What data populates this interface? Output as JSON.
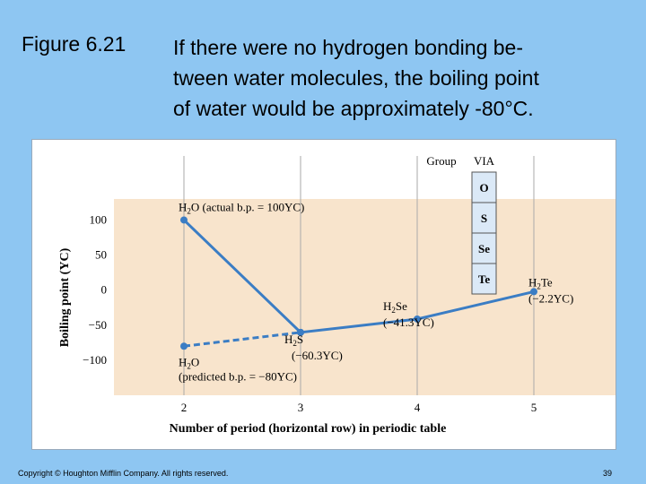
{
  "slide": {
    "figure_label": "Figure 6.21",
    "caption_lines": [
      "If there were no hydrogen bonding be-",
      "tween water molecules, the boiling point",
      "of water would be approximately -80°C."
    ],
    "copyright": "Copyright © Houghton Mifflin Company. All rights reserved.",
    "page_number": "39"
  },
  "colors": {
    "background": "#8ec6f2",
    "plot_area": "#f8e4cc",
    "line": "#3b7dc4",
    "group_box": "#dbe9f7"
  },
  "chart_data": {
    "type": "line",
    "xlabel": "Number of period (horizontal row) in periodic table",
    "ylabel": "Boiling point (ΥC)",
    "x_ticks": [
      "2",
      "3",
      "4",
      "5"
    ],
    "y_ticks": [
      "100",
      "50",
      "0",
      "−50",
      "−100"
    ],
    "xlim": [
      1.4,
      5.7
    ],
    "ylim": [
      -150,
      130
    ],
    "grid": "vertical",
    "group": {
      "header": "Group",
      "name": "VIA",
      "elements": [
        "O",
        "S",
        "Se",
        "Te"
      ]
    },
    "series": [
      {
        "style": "solid",
        "points": [
          {
            "x": 2,
            "y": 100,
            "formula": "H",
            "sub": "2",
            "rest": "O (actual b.p. = 100ΥC)",
            "value_label": ""
          },
          {
            "x": 3,
            "y": -60.3,
            "formula": "H",
            "sub": "2",
            "rest": "S",
            "value_label": "(−60.3ΥC)"
          },
          {
            "x": 4,
            "y": -41.3,
            "formula": "H",
            "sub": "2",
            "rest": "Se",
            "value_label": "(−41.3ΥC)"
          },
          {
            "x": 5,
            "y": -2.2,
            "formula": "H",
            "sub": "2",
            "rest": "Te",
            "value_label": "(−2.2ΥC)"
          }
        ]
      },
      {
        "style": "dashed",
        "points": [
          {
            "x": 2,
            "y": -80,
            "formula": "H",
            "sub": "2",
            "rest": "O",
            "value_label": "(predicted b.p. = −80ΥC)"
          },
          {
            "x": 3,
            "y": -60.3,
            "formula": "",
            "sub": "",
            "rest": "",
            "value_label": ""
          }
        ]
      }
    ]
  }
}
